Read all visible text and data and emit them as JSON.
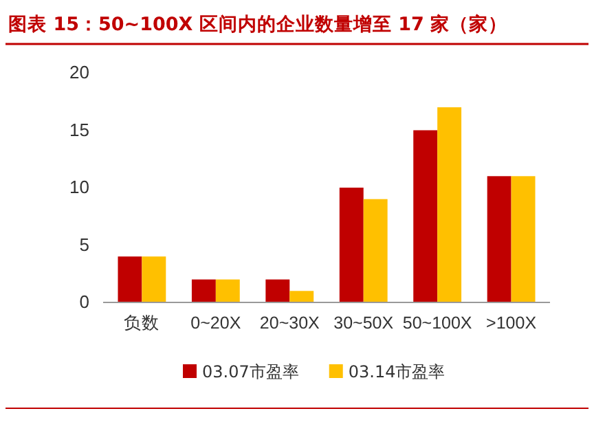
{
  "chart_data": {
    "type": "bar",
    "title": "图表 15：50~100X 区间内的企业数量增至 17 家（家）",
    "categories": [
      "负数",
      "0~20X",
      "20~30X",
      "30~50X",
      "50~100X",
      ">100X"
    ],
    "series": [
      {
        "name": "03.07市盈率",
        "color": "#c00000",
        "values": [
          4,
          2,
          2,
          10,
          15,
          11
        ]
      },
      {
        "name": "03.14市盈率",
        "color": "#ffc000",
        "values": [
          4,
          2,
          1,
          9,
          17,
          11
        ]
      }
    ],
    "ylim": [
      0,
      20
    ],
    "yticks": [
      0,
      5,
      10,
      15,
      20
    ],
    "grid": false,
    "legend": "bottom"
  }
}
